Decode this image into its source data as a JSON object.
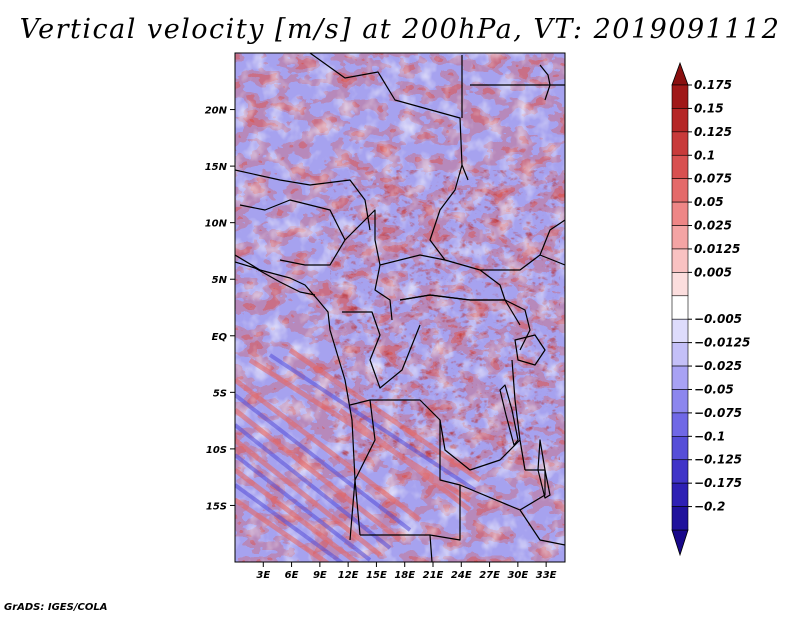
{
  "title": "Vertical velocity [m/s] at 200hPa, VT: 2019091112",
  "credit": "GrADS: IGES/COLA",
  "map": {
    "lon_range": [
      0,
      35
    ],
    "lat_range": [
      -20,
      25
    ],
    "lon_ticks": [
      {
        "value": 3,
        "label": "3E"
      },
      {
        "value": 6,
        "label": "6E"
      },
      {
        "value": 9,
        "label": "9E"
      },
      {
        "value": 12,
        "label": "12E"
      },
      {
        "value": 15,
        "label": "15E"
      },
      {
        "value": 18,
        "label": "18E"
      },
      {
        "value": 21,
        "label": "21E"
      },
      {
        "value": 24,
        "label": "24E"
      },
      {
        "value": 27,
        "label": "27E"
      },
      {
        "value": 30,
        "label": "30E"
      },
      {
        "value": 33,
        "label": "33E"
      }
    ],
    "lat_ticks": [
      {
        "value": 20,
        "label": "20N"
      },
      {
        "value": 15,
        "label": "15N"
      },
      {
        "value": 10,
        "label": "10N"
      },
      {
        "value": 5,
        "label": "5N"
      },
      {
        "value": 0,
        "label": "EQ"
      },
      {
        "value": -5,
        "label": "5S"
      },
      {
        "value": -10,
        "label": "10S"
      },
      {
        "value": -15,
        "label": "15S"
      }
    ]
  },
  "colorbar": {
    "levels": [
      {
        "label": "0.175",
        "color": "#a01818"
      },
      {
        "label": "0.15",
        "color": "#b52626"
      },
      {
        "label": "0.125",
        "color": "#c83a3a"
      },
      {
        "label": "0.1",
        "color": "#d85050"
      },
      {
        "label": "0.075",
        "color": "#e46a6a"
      },
      {
        "label": "0.05",
        "color": "#ee8686"
      },
      {
        "label": "0.025",
        "color": "#f4a4a4"
      },
      {
        "label": "0.0125",
        "color": "#f9c2c2"
      },
      {
        "label": "0.005",
        "color": "#fcdede"
      },
      {
        "label": "",
        "color": "#ffffff"
      },
      {
        "label": "−0.005",
        "color": "#dedcfc"
      },
      {
        "label": "−0.0125",
        "color": "#c4c0f8"
      },
      {
        "label": "−0.025",
        "color": "#a8a2f4"
      },
      {
        "label": "−0.05",
        "color": "#8c86ee"
      },
      {
        "label": "−0.075",
        "color": "#7068e6"
      },
      {
        "label": "−0.1",
        "color": "#564ed8"
      },
      {
        "label": "−0.125",
        "color": "#4034c8"
      },
      {
        "label": "−0.175",
        "color": "#2e20b4"
      },
      {
        "label": "−0.2",
        "color": "#20129c"
      }
    ],
    "top_arrow_color": "#8a1010",
    "bottom_arrow_color": "#18088a"
  }
}
